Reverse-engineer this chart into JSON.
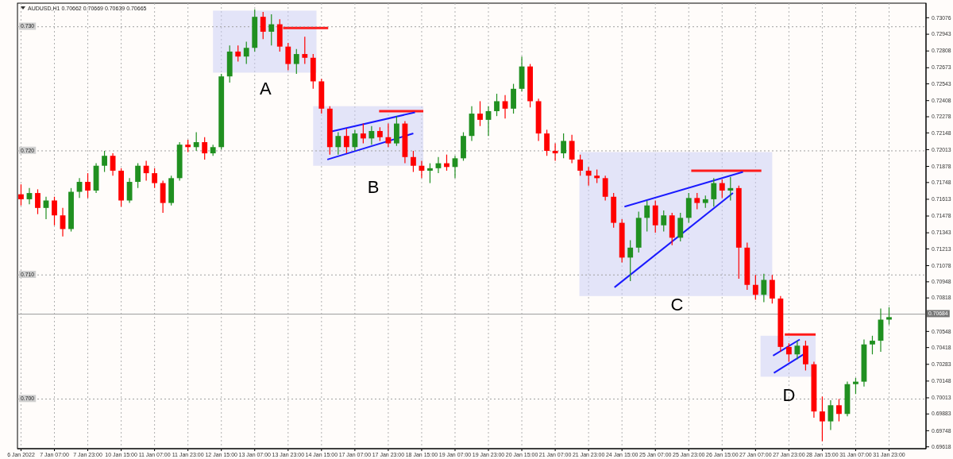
{
  "chart_data": {
    "type": "candlestick",
    "title": "AUDUSD,H1  0.70662 0.70669 0.70639 0.70665",
    "categories": [
      "6 Jan 2022",
      null,
      null,
      null,
      "7 Jan 07:00",
      null,
      null,
      null,
      "7 Jan 23:00",
      null,
      null,
      null,
      "10 Jan 15:00",
      null,
      null,
      null,
      "11 Jan 07:00",
      null,
      null,
      null,
      "11 Jan 23:00",
      null,
      null,
      null,
      "12 Jan 15:00",
      null,
      null,
      null,
      "13 Jan 07:00",
      null,
      null,
      null,
      "13 Jan 23:00",
      null,
      null,
      null,
      "14 Jan 15:00",
      null,
      null,
      null,
      "17 Jan 07:00",
      null,
      null,
      null,
      "17 Jan 23:00",
      null,
      null,
      null,
      "18 Jan 15:00",
      null,
      null,
      null,
      "19 Jan 07:00",
      null,
      null,
      null,
      "19 Jan 23:00",
      null,
      null,
      null,
      "20 Jan 15:00",
      null,
      null,
      null,
      "21 Jan 07:00",
      null,
      null,
      null,
      "21 Jan 23:00",
      null,
      null,
      null,
      "24 Jan 15:00",
      null,
      null,
      null,
      "25 Jan 07:00",
      null,
      null,
      null,
      "25 Jan 23:00",
      null,
      null,
      null,
      "26 Jan 15:00",
      null,
      null,
      null,
      "27 Jan 07:00",
      null,
      null,
      null,
      "27 Jan 23:00",
      null,
      null,
      null,
      "28 Jan 15:00",
      null,
      null,
      null,
      "31 Jan 07:00",
      null,
      null,
      null,
      "31 Jan 23:00",
      null,
      null,
      null,
      null
    ],
    "ohlc": [
      [
        0.7165,
        0.7173,
        0.7156,
        0.7161
      ],
      [
        0.7161,
        0.717,
        0.7157,
        0.7166
      ],
      [
        0.7166,
        0.7169,
        0.7149,
        0.7154
      ],
      [
        0.7154,
        0.7163,
        0.7145,
        0.716
      ],
      [
        0.716,
        0.7163,
        0.714,
        0.7148
      ],
      [
        0.7148,
        0.7154,
        0.7131,
        0.7137
      ],
      [
        0.7137,
        0.717,
        0.7135,
        0.7167
      ],
      [
        0.7167,
        0.7178,
        0.7162,
        0.7175
      ],
      [
        0.7175,
        0.7182,
        0.7162,
        0.7168
      ],
      [
        0.7168,
        0.719,
        0.7166,
        0.7188
      ],
      [
        0.7188,
        0.72,
        0.7183,
        0.7196
      ],
      [
        0.7196,
        0.7198,
        0.718,
        0.7184
      ],
      [
        0.7184,
        0.7186,
        0.7155,
        0.716
      ],
      [
        0.716,
        0.7178,
        0.7158,
        0.7175
      ],
      [
        0.7175,
        0.719,
        0.717,
        0.7188
      ],
      [
        0.7188,
        0.7192,
        0.7176,
        0.7182
      ],
      [
        0.7182,
        0.7186,
        0.717,
        0.7174
      ],
      [
        0.7174,
        0.7176,
        0.715,
        0.7158
      ],
      [
        0.7158,
        0.718,
        0.7156,
        0.7178
      ],
      [
        0.7178,
        0.7207,
        0.7176,
        0.7205
      ],
      [
        0.7205,
        0.7209,
        0.7199,
        0.7203
      ],
      [
        0.7203,
        0.7215,
        0.72,
        0.7207
      ],
      [
        0.7207,
        0.7211,
        0.7193,
        0.7198
      ],
      [
        0.7198,
        0.7205,
        0.7196,
        0.7203
      ],
      [
        0.7203,
        0.7262,
        0.7201,
        0.726
      ],
      [
        0.726,
        0.7285,
        0.7255,
        0.728
      ],
      [
        0.728,
        0.7285,
        0.7272,
        0.7276
      ],
      [
        0.7276,
        0.7288,
        0.727,
        0.7283
      ],
      [
        0.7283,
        0.7314,
        0.728,
        0.7308
      ],
      [
        0.7308,
        0.7312,
        0.729,
        0.7296
      ],
      [
        0.7296,
        0.731,
        0.7285,
        0.7302
      ],
      [
        0.7302,
        0.7306,
        0.728,
        0.7284
      ],
      [
        0.7284,
        0.7287,
        0.7265,
        0.727
      ],
      [
        0.727,
        0.7282,
        0.7262,
        0.7278
      ],
      [
        0.7278,
        0.7292,
        0.727,
        0.7275
      ],
      [
        0.7275,
        0.7278,
        0.725,
        0.7256
      ],
      [
        0.7256,
        0.7258,
        0.723,
        0.7234
      ],
      [
        0.7234,
        0.7236,
        0.7197,
        0.7203
      ],
      [
        0.7203,
        0.7215,
        0.7197,
        0.7212
      ],
      [
        0.7212,
        0.7218,
        0.7198,
        0.7203
      ],
      [
        0.7203,
        0.7217,
        0.72,
        0.7214
      ],
      [
        0.7214,
        0.7222,
        0.7206,
        0.721
      ],
      [
        0.721,
        0.722,
        0.7205,
        0.7216
      ],
      [
        0.7216,
        0.7219,
        0.7208,
        0.7211
      ],
      [
        0.7211,
        0.7222,
        0.7203,
        0.7206
      ],
      [
        0.7206,
        0.7228,
        0.7204,
        0.7222
      ],
      [
        0.7222,
        0.7224,
        0.719,
        0.7195
      ],
      [
        0.7195,
        0.72,
        0.7183,
        0.7188
      ],
      [
        0.7188,
        0.7192,
        0.7178,
        0.7184
      ],
      [
        0.7184,
        0.719,
        0.7174,
        0.7186
      ],
      [
        0.7186,
        0.7195,
        0.7182,
        0.719
      ],
      [
        0.719,
        0.7197,
        0.7184,
        0.7187
      ],
      [
        0.7187,
        0.7196,
        0.7178,
        0.7194
      ],
      [
        0.7194,
        0.7215,
        0.7192,
        0.7212
      ],
      [
        0.7212,
        0.7236,
        0.7208,
        0.723
      ],
      [
        0.723,
        0.724,
        0.722,
        0.7225
      ],
      [
        0.7225,
        0.7236,
        0.7212,
        0.7232
      ],
      [
        0.7232,
        0.7246,
        0.7228,
        0.724
      ],
      [
        0.724,
        0.7245,
        0.7226,
        0.7234
      ],
      [
        0.7234,
        0.7254,
        0.723,
        0.725
      ],
      [
        0.725,
        0.7276,
        0.7248,
        0.7268
      ],
      [
        0.7268,
        0.727,
        0.7235,
        0.724
      ],
      [
        0.724,
        0.7242,
        0.7208,
        0.7214
      ],
      [
        0.7214,
        0.7217,
        0.7196,
        0.72
      ],
      [
        0.72,
        0.7206,
        0.7192,
        0.7198
      ],
      [
        0.7198,
        0.7214,
        0.7194,
        0.7208
      ],
      [
        0.7208,
        0.7213,
        0.719,
        0.7193
      ],
      [
        0.7193,
        0.7197,
        0.718,
        0.7184
      ],
      [
        0.7184,
        0.7187,
        0.7172,
        0.718
      ],
      [
        0.718,
        0.7185,
        0.7174,
        0.7178
      ],
      [
        0.7178,
        0.718,
        0.716,
        0.7163
      ],
      [
        0.7163,
        0.7166,
        0.7138,
        0.7142
      ],
      [
        0.7142,
        0.7145,
        0.711,
        0.7114
      ],
      [
        0.7114,
        0.7128,
        0.7095,
        0.7122
      ],
      [
        0.7122,
        0.7151,
        0.7118,
        0.7146
      ],
      [
        0.7146,
        0.716,
        0.7135,
        0.7156
      ],
      [
        0.7156,
        0.716,
        0.7134,
        0.714
      ],
      [
        0.714,
        0.7152,
        0.7135,
        0.7148
      ],
      [
        0.7148,
        0.715,
        0.7124,
        0.713
      ],
      [
        0.713,
        0.715,
        0.7127,
        0.7146
      ],
      [
        0.7146,
        0.7166,
        0.7142,
        0.7162
      ],
      [
        0.7162,
        0.7166,
        0.7153,
        0.7158
      ],
      [
        0.7158,
        0.7164,
        0.7154,
        0.7161
      ],
      [
        0.7161,
        0.7178,
        0.7155,
        0.7174
      ],
      [
        0.7174,
        0.7177,
        0.7162,
        0.7168
      ],
      [
        0.7168,
        0.7179,
        0.716,
        0.717
      ],
      [
        0.717,
        0.7172,
        0.7097,
        0.7122
      ],
      [
        0.7122,
        0.7126,
        0.7088,
        0.7092
      ],
      [
        0.7092,
        0.71,
        0.708,
        0.7084
      ],
      [
        0.7084,
        0.7101,
        0.7078,
        0.7096
      ],
      [
        0.7096,
        0.71,
        0.7077,
        0.7081
      ],
      [
        0.7081,
        0.7083,
        0.7038,
        0.7042
      ],
      [
        0.7042,
        0.7045,
        0.703,
        0.7036
      ],
      [
        0.7036,
        0.7047,
        0.7032,
        0.7043
      ],
      [
        0.7043,
        0.7047,
        0.7023,
        0.7028
      ],
      [
        0.7028,
        0.703,
        0.6985,
        0.699
      ],
      [
        0.699,
        0.7002,
        0.6966,
        0.6982
      ],
      [
        0.6982,
        0.6999,
        0.6975,
        0.6995
      ],
      [
        0.6995,
        0.7,
        0.6982,
        0.6988
      ],
      [
        0.6988,
        0.7014,
        0.6986,
        0.7012
      ],
      [
        0.7012,
        0.7017,
        0.7004,
        0.7014
      ],
      [
        0.7014,
        0.7048,
        0.701,
        0.7044
      ],
      [
        0.7044,
        0.7051,
        0.7036,
        0.7047
      ],
      [
        0.7047,
        0.7073,
        0.7038,
        0.7064
      ],
      [
        0.7064,
        0.7074,
        0.706,
        0.7066
      ],
      null,
      null,
      null,
      null
    ],
    "colors": [
      "#ff0000",
      "#209020",
      "#ff0000",
      "#209020",
      "#ff0000",
      "#ff0000",
      "#209020",
      "#209020",
      "#ff0000",
      "#209020",
      "#209020",
      "#ff0000",
      "#ff0000",
      "#209020",
      "#209020",
      "#ff0000",
      "#ff0000",
      "#ff0000",
      "#209020",
      "#209020",
      "#ff0000",
      "#209020",
      "#ff0000",
      "#209020",
      "#209020",
      "#209020",
      "#ff0000",
      "#209020",
      "#209020",
      "#ff0000",
      "#209020",
      "#ff0000",
      "#ff0000",
      "#209020",
      "#ff0000",
      "#ff0000",
      "#ff0000",
      "#ff0000",
      "#209020",
      "#ff0000",
      "#209020",
      "#ff0000",
      "#209020",
      "#ff0000",
      "#ff0000",
      "#209020",
      "#ff0000",
      "#ff0000",
      "#ff0000",
      "#209020",
      "#209020",
      "#ff0000",
      "#209020",
      "#209020",
      "#209020",
      "#ff0000",
      "#209020",
      "#209020",
      "#ff0000",
      "#209020",
      "#209020",
      "#ff0000",
      "#ff0000",
      "#ff0000",
      "#ff0000",
      "#209020",
      "#ff0000",
      "#ff0000",
      "#ff0000",
      "#ff0000",
      "#ff0000",
      "#ff0000",
      "#ff0000",
      "#209020",
      "#209020",
      "#209020",
      "#ff0000",
      "#209020",
      "#ff0000",
      "#209020",
      "#209020",
      "#ff0000",
      "#209020",
      "#209020",
      "#ff0000",
      "#209020",
      "#ff0000",
      "#ff0000",
      "#ff0000",
      "#209020",
      "#ff0000",
      "#ff0000",
      "#ff0000",
      "#209020",
      "#ff0000",
      "#ff0000",
      "#ff0000",
      "#209020",
      "#ff0000",
      "#209020",
      "#209020",
      "#209020",
      "#209020",
      "#209020",
      "#209020",
      null,
      null,
      null,
      null
    ],
    "ylim": [
      0.696,
      0.7319
    ],
    "yticks": [
      0.73076,
      0.72943,
      0.72808,
      0.72673,
      0.72543,
      0.72408,
      0.72278,
      0.72148,
      0.72013,
      0.71878,
      0.71748,
      0.71613,
      0.71478,
      0.71343,
      0.71213,
      0.71078,
      0.70948,
      0.70818,
      0.70548,
      0.70418,
      0.70283,
      0.70148,
      0.70013,
      0.69883,
      0.69748,
      0.69618
    ],
    "grid": "x",
    "ref_lines": [
      {
        "axis": "y",
        "value": 0.73,
        "label": "0.730",
        "line_style": "dotted",
        "color": "#a0a0a0"
      },
      {
        "axis": "y",
        "value": 0.72,
        "label": "0.720",
        "line_style": "dotted",
        "color": "#a0a0a0"
      },
      {
        "axis": "y",
        "value": 0.71,
        "label": "0.710",
        "line_style": "dotted",
        "color": "#a0a0a0"
      },
      {
        "axis": "y",
        "value": 0.7,
        "label": "0.700",
        "line_style": "dotted",
        "color": "#a0a0a0"
      },
      {
        "axis": "y",
        "value": 0.70684,
        "label": "0.70684",
        "line_style": "solid",
        "color": "#9a9a9a"
      }
    ],
    "annotations": [
      "A",
      "B",
      "C",
      "D"
    ]
  }
}
